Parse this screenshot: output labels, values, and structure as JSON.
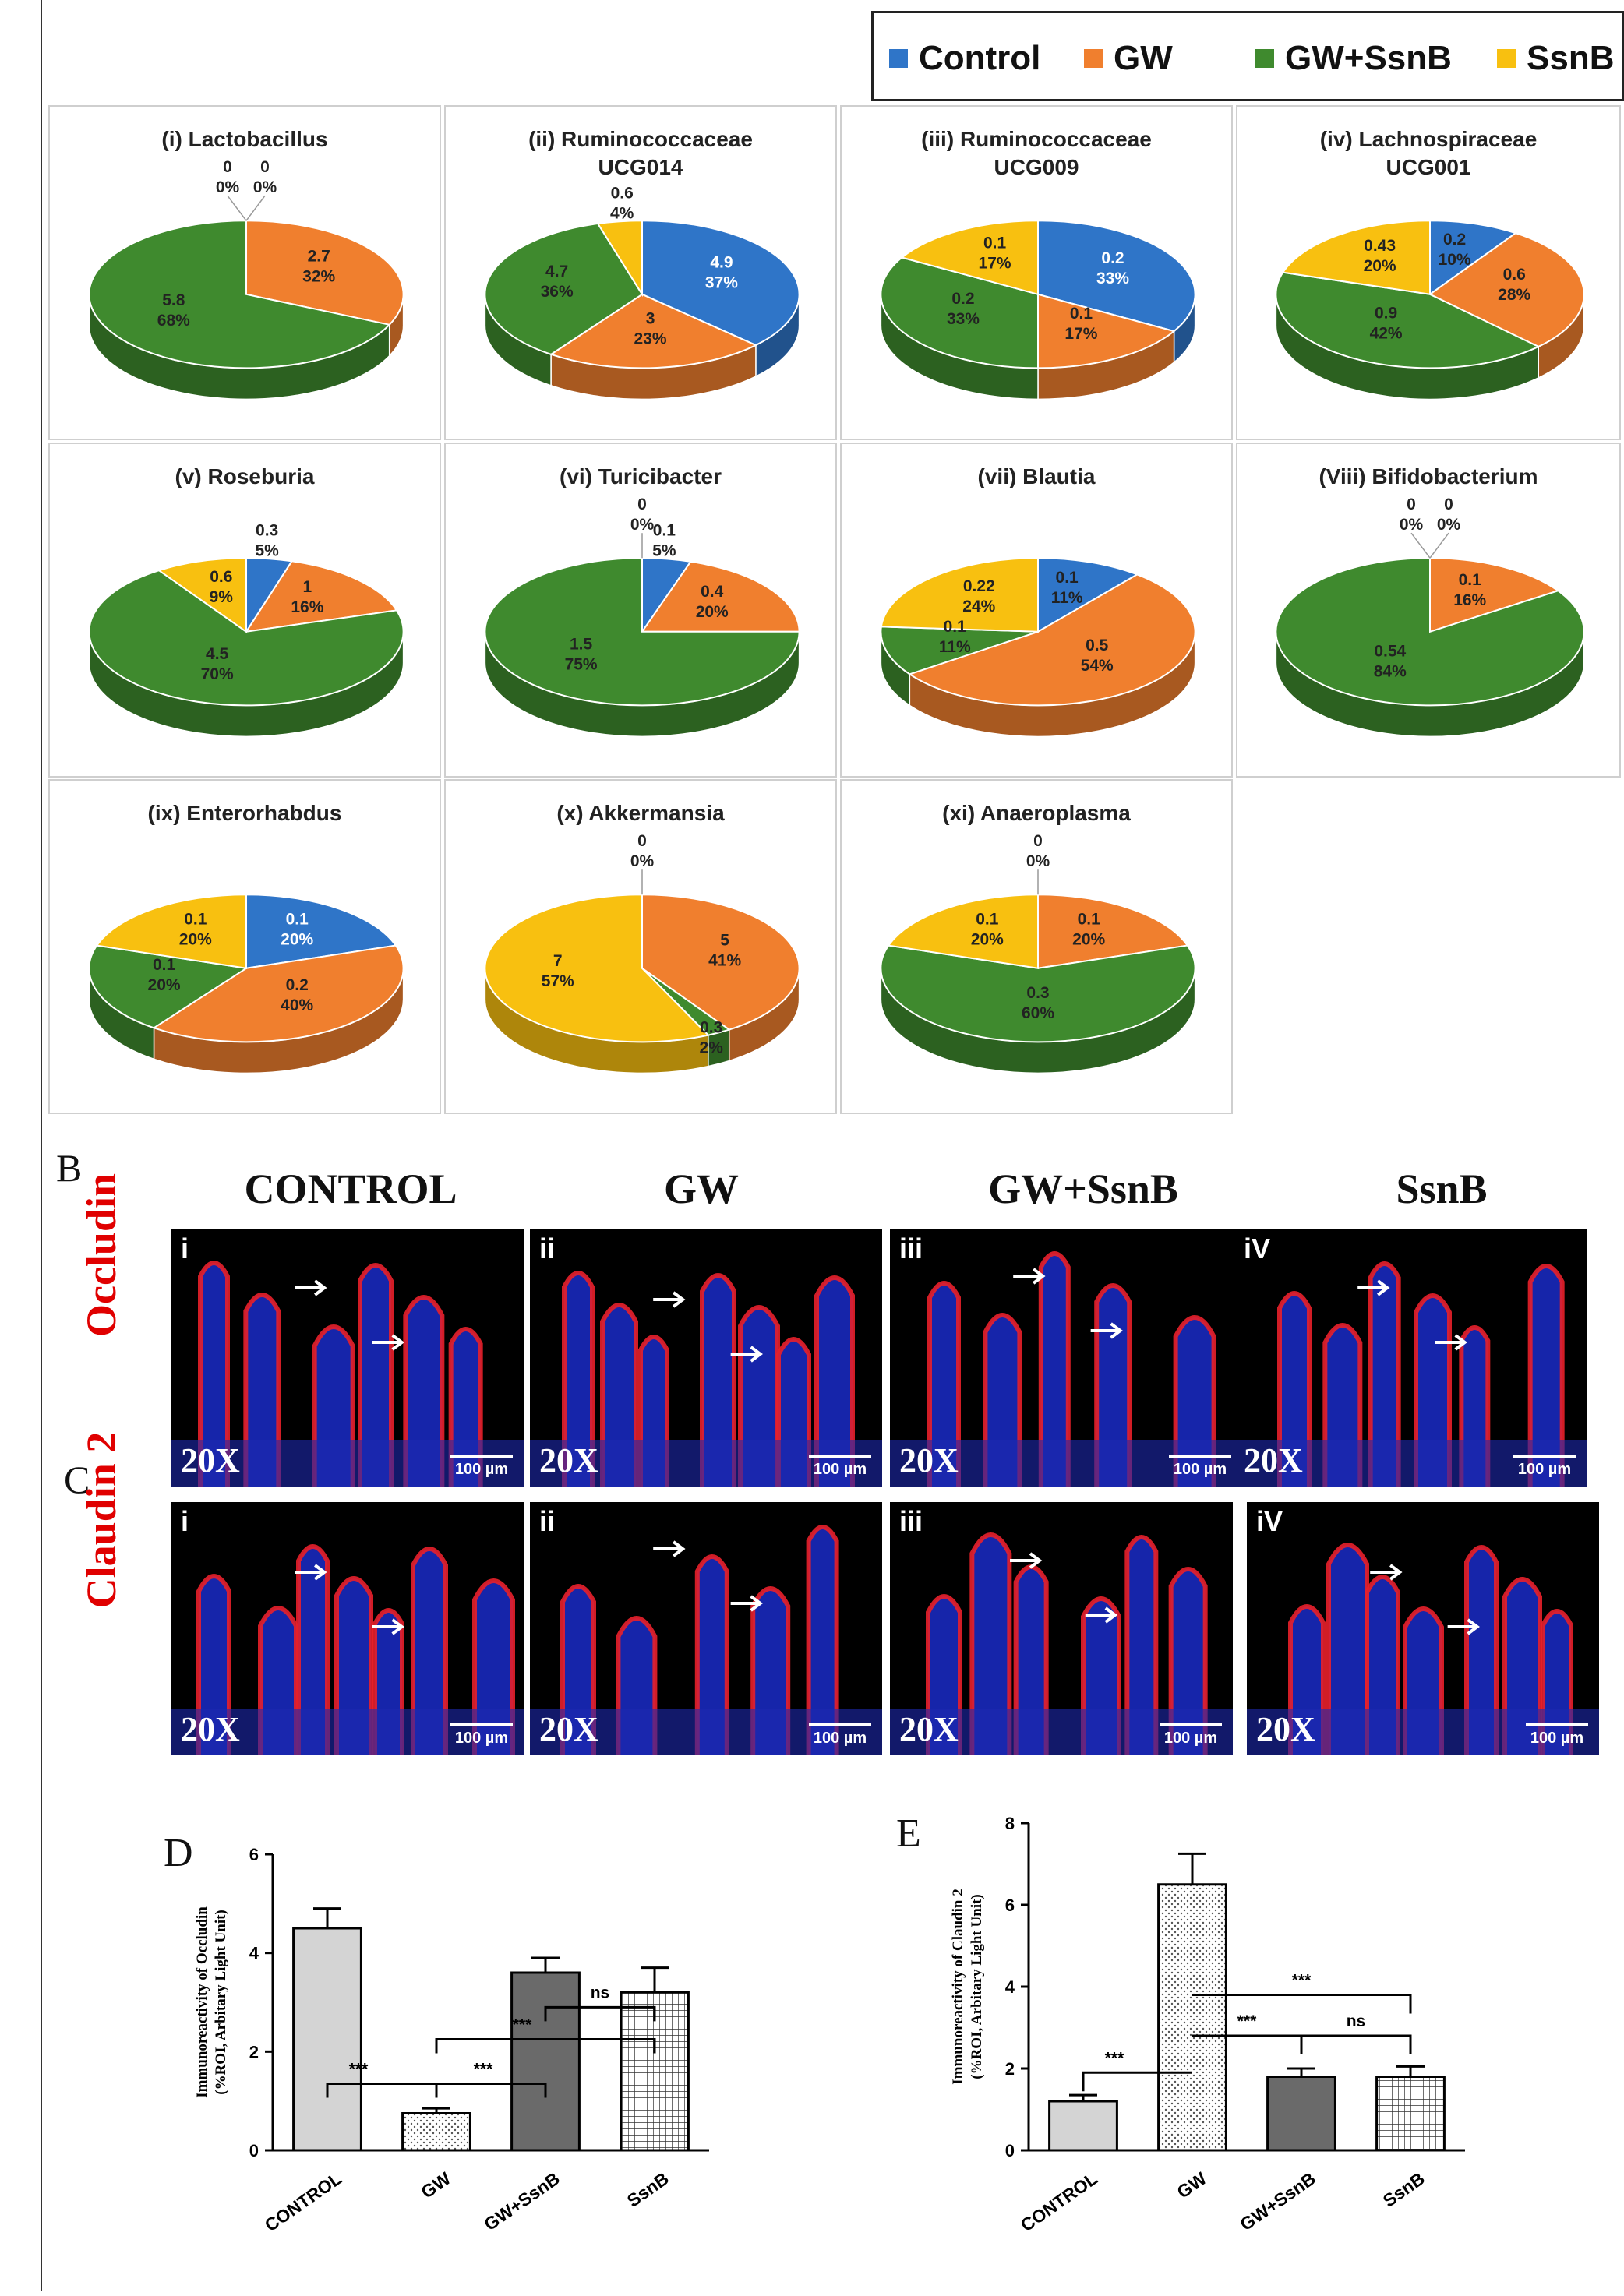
{
  "legend": [
    {
      "label": "Control",
      "color": "#2f75c8"
    },
    {
      "label": "GW",
      "color": "#f07f2e"
    },
    {
      "label": "GW+SsnB",
      "color": "#3f8a2e"
    },
    {
      "label": "SsnB",
      "color": "#f8c010"
    }
  ],
  "chart_data": [
    {
      "type": "pie",
      "title": "(i) Lactobacillus",
      "slices": [
        {
          "series": "Control",
          "value": 0,
          "label": "0\n0%"
        },
        {
          "series": "GW",
          "value": 2.7,
          "label": "2.7\n32%"
        },
        {
          "series": "GW+SsnB",
          "value": 5.8,
          "label": "5.8\n68%"
        },
        {
          "series": "SsnB",
          "value": 0,
          "label": "0\n0%"
        }
      ]
    },
    {
      "type": "pie",
      "title": "(ii) Ruminococcaceae\nUCG014",
      "slices": [
        {
          "series": "Control",
          "value": 4.9,
          "label": "4.9\n37%"
        },
        {
          "series": "GW",
          "value": 3,
          "label": "3\n23%"
        },
        {
          "series": "GW+SsnB",
          "value": 4.7,
          "label": "4.7\n36%"
        },
        {
          "series": "SsnB",
          "value": 0.6,
          "label": "0.6\n4%"
        }
      ]
    },
    {
      "type": "pie",
      "title": "(iii) Ruminococcaceae\nUCG009",
      "slices": [
        {
          "series": "Control",
          "value": 0.2,
          "label": "0.2\n33%"
        },
        {
          "series": "GW",
          "value": 0.1,
          "label": "0.1\n17%"
        },
        {
          "series": "GW+SsnB",
          "value": 0.2,
          "label": "0.2\n33%"
        },
        {
          "series": "SsnB",
          "value": 0.1,
          "label": "0.1\n17%"
        }
      ]
    },
    {
      "type": "pie",
      "title": "(iv) Lachnospiraceae\nUCG001",
      "slices": [
        {
          "series": "Control",
          "value": 0.2,
          "label": "0.2\n10%"
        },
        {
          "series": "GW",
          "value": 0.6,
          "label": "0.6\n28%"
        },
        {
          "series": "GW+SsnB",
          "value": 0.9,
          "label": "0.9\n42%"
        },
        {
          "series": "SsnB",
          "value": 0.43,
          "label": "0.43\n20%"
        }
      ]
    },
    {
      "type": "pie",
      "title": "(v) Roseburia",
      "slices": [
        {
          "series": "Control",
          "value": 0.3,
          "label": "0.3\n5%"
        },
        {
          "series": "GW",
          "value": 1,
          "label": "1\n16%"
        },
        {
          "series": "GW+SsnB",
          "value": 4.5,
          "label": "4.5\n70%"
        },
        {
          "series": "SsnB",
          "value": 0.6,
          "label": "0.6\n9%"
        }
      ]
    },
    {
      "type": "pie",
      "title": "(vi) Turicibacter",
      "slices": [
        {
          "series": "Control",
          "value": 0.1,
          "label": "0.1\n5%"
        },
        {
          "series": "GW",
          "value": 0.4,
          "label": "0.4\n20%"
        },
        {
          "series": "GW+SsnB",
          "value": 1.5,
          "label": "1.5\n75%"
        },
        {
          "series": "SsnB",
          "value": 0,
          "label": "0\n0%"
        }
      ]
    },
    {
      "type": "pie",
      "title": "(vii) Blautia",
      "slices": [
        {
          "series": "Control",
          "value": 0.1,
          "label": "0.1\n11%"
        },
        {
          "series": "GW",
          "value": 0.5,
          "label": "0.5\n54%"
        },
        {
          "series": "GW+SsnB",
          "value": 0.1,
          "label": "0.1\n11%"
        },
        {
          "series": "SsnB",
          "value": 0.22,
          "label": "0.22\n24%"
        }
      ]
    },
    {
      "type": "pie",
      "title": "(Viii) Bifidobacterium",
      "slices": [
        {
          "series": "Control",
          "value": 0,
          "label": "0\n0%"
        },
        {
          "series": "GW",
          "value": 0.1,
          "label": "0.1\n16%"
        },
        {
          "series": "GW+SsnB",
          "value": 0.54,
          "label": "0.54\n84%"
        },
        {
          "series": "SsnB",
          "value": 0,
          "label": "0\n0%"
        }
      ]
    },
    {
      "type": "pie",
      "title": "(ix) Enterorhabdus",
      "slices": [
        {
          "series": "Control",
          "value": 0.1,
          "label": "0.1\n20%"
        },
        {
          "series": "GW",
          "value": 0.2,
          "label": "0.2\n40%"
        },
        {
          "series": "GW+SsnB",
          "value": 0.1,
          "label": "0.1\n20%"
        },
        {
          "series": "SsnB",
          "value": 0.1,
          "label": "0.1\n20%"
        }
      ]
    },
    {
      "type": "pie",
      "title": "(x) Akkermansia",
      "slices": [
        {
          "series": "Control",
          "value": 0,
          "label": "0\n0%"
        },
        {
          "series": "GW",
          "value": 5,
          "label": "5\n41%"
        },
        {
          "series": "GW+SsnB",
          "value": 0.3,
          "label": "0.3\n2%"
        },
        {
          "series": "SsnB",
          "value": 7,
          "label": "7\n57%"
        }
      ]
    },
    {
      "type": "pie",
      "title": "(xi) Anaeroplasma",
      "slices": [
        {
          "series": "Control",
          "value": 0,
          "label": "0\n0%"
        },
        {
          "series": "GW",
          "value": 0.1,
          "label": "0.1\n20%"
        },
        {
          "series": "GW+SsnB",
          "value": 0.3,
          "label": "0.3\n60%"
        },
        {
          "series": "SsnB",
          "value": 0.1,
          "label": "0.1\n20%"
        }
      ]
    },
    {
      "type": "bar",
      "letter": "D",
      "ylabel": "Immunoreactivity of Occludin\n(%ROI, Arbitary Light Unit)",
      "categories": [
        "CONTROL",
        "GW",
        "GW+SsnB",
        "SsnB"
      ],
      "values": [
        4.5,
        0.75,
        3.6,
        3.2
      ],
      "errors": [
        0.4,
        0.1,
        0.3,
        0.5
      ],
      "ylim": [
        0,
        6
      ],
      "yticks": [
        0,
        2,
        4,
        6
      ],
      "significance": [
        "***",
        "***",
        "***",
        "ns"
      ]
    },
    {
      "type": "bar",
      "letter": "E",
      "ylabel": "Immunoreactivity of Claudin 2\n(%ROI, Arbitary Light Unit)",
      "categories": [
        "CONTROL",
        "GW",
        "GW+SsnB",
        "SsnB"
      ],
      "values": [
        1.2,
        6.5,
        1.8,
        1.8
      ],
      "errors": [
        0.15,
        0.75,
        0.2,
        0.25
      ],
      "ylim": [
        0,
        8
      ],
      "yticks": [
        0,
        2,
        4,
        6,
        8
      ],
      "significance": [
        "***",
        "***",
        "***",
        "ns"
      ]
    }
  ],
  "micrographs": {
    "section_b": "B",
    "section_c": "C",
    "columns": [
      "CONTROL",
      "GW",
      "GW+SsnB",
      "SsnB"
    ],
    "rows": [
      "Occludin",
      "Claudin 2"
    ],
    "romans_b": [
      "i",
      "ii",
      "iii",
      "iV"
    ],
    "romans_c": [
      "i",
      "ii",
      "iii",
      "iV"
    ],
    "magnification": "20X",
    "scale": "100 µm"
  }
}
